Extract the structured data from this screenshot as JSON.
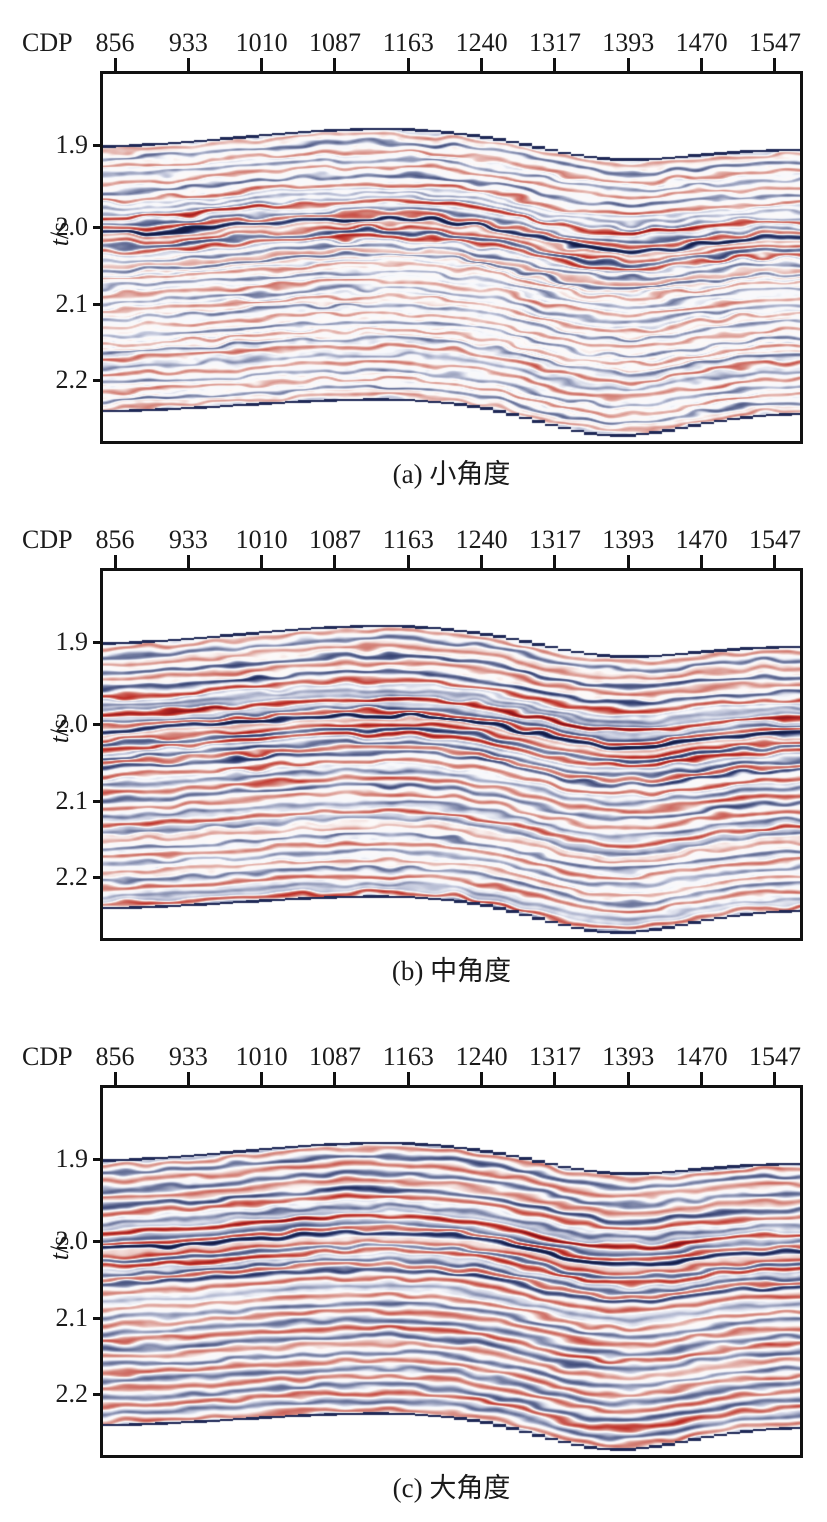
{
  "figure": {
    "x_axis": {
      "label": "CDP",
      "ticks": [
        "856",
        "933",
        "1010",
        "1087",
        "1163",
        "1240",
        "1317",
        "1393",
        "1470",
        "1547"
      ]
    },
    "y_axis": {
      "label_italic": "t",
      "label_rest": "/s",
      "ticks": [
        "1.9",
        "2.0",
        "2.1",
        "2.2"
      ]
    },
    "panels": [
      {
        "caption": "(a) 小角度"
      },
      {
        "caption": "(b) 中角度"
      },
      {
        "caption": "(c) 大角度"
      }
    ],
    "colors": {
      "negative_extreme": "#121c48",
      "negative_strong": "#243166",
      "negative_weak": "#6e79a6",
      "neutral": "#ffffff",
      "positive_weak": "#ebc9c4",
      "positive_strong": "#c03028",
      "positive_extreme": "#8f1218",
      "boundary_line": "#1e2856",
      "frame": "#111111",
      "text": "#1a1a1a"
    }
  },
  "chart_data": {
    "type": "heatmap",
    "subtype": "seismic angle-stack amplitude sections, red-white-blue polarity colormap",
    "panels": [
      {
        "label": "(a) 小角度"
      },
      {
        "label": "(b) 中角度"
      },
      {
        "label": "(c) 大角度"
      }
    ],
    "x": {
      "label": "CDP",
      "ticks": [
        856,
        933,
        1010,
        1087,
        1163,
        1240,
        1317,
        1393,
        1470,
        1547
      ]
    },
    "y": {
      "label": "t/s",
      "ticks": [
        1.9,
        2.0,
        2.1,
        2.2
      ]
    },
    "data_window": {
      "t_top_s": 1.88,
      "t_bottom_s": 2.26,
      "anticline_crest_near_cdp": 1120,
      "syncline_trough_near_cdp": 1365
    },
    "key_reflectors": [
      {
        "t_s": 1.98,
        "polarity": "peak",
        "appearance": "bright red band"
      },
      {
        "t_s": 2.01,
        "polarity": "trough",
        "appearance": "strongest dark-blue band, dips to ~2.05 s at syncline"
      },
      {
        "t_s": 2.03,
        "polarity": "peak",
        "appearance": "strong red band below the dark-blue band"
      },
      {
        "t_s": 2.06,
        "polarity": "trough",
        "appearance": "second dark-blue band on right half"
      }
    ],
    "legend": "none",
    "grid": "off"
  }
}
